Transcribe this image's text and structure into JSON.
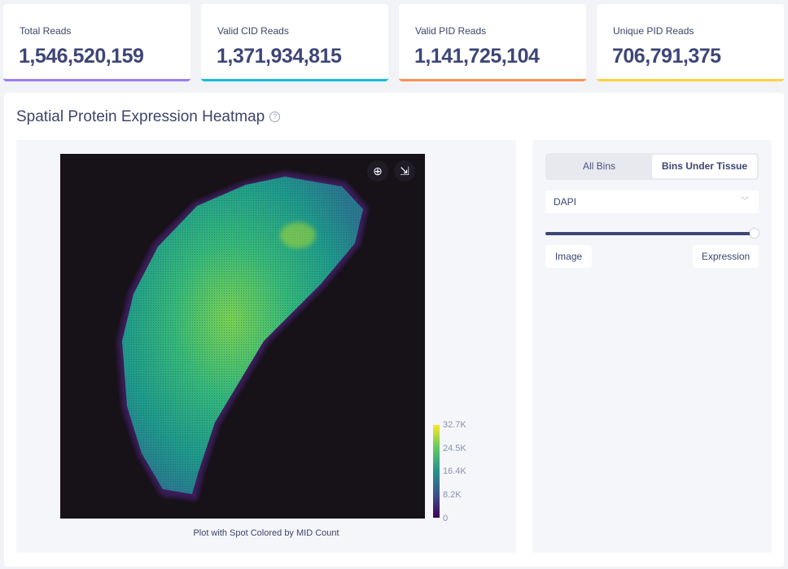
{
  "stats": [
    {
      "label": "Total Reads",
      "value": "1,546,520,159",
      "color": "#9b7ef5"
    },
    {
      "label": "Valid CID Reads",
      "value": "1,371,934,815",
      "color": "#13bde0"
    },
    {
      "label": "Valid PID Reads",
      "value": "1,141,725,104",
      "color": "#ff9150"
    },
    {
      "label": "Unique PID Reads",
      "value": "706,791,375",
      "color": "#ffd23c"
    }
  ],
  "heatmap": {
    "title": "Spatial Protein Expression Heatmap",
    "help_icon": "question-circle-icon",
    "tools": [
      "locate-icon",
      "download-image-icon"
    ],
    "caption": "Plot with Spot Colored by MID Count"
  },
  "chart_data": {
    "type": "heatmap",
    "colormap": "viridis",
    "range": [
      0,
      32700
    ],
    "colorbar_ticks": [
      "32.7K",
      "24.5K",
      "16.4K",
      "8.2K",
      "0"
    ]
  },
  "controls": {
    "tabs": [
      "All Bins",
      "Bins Under Tissue"
    ],
    "active_tab": "Bins Under Tissue",
    "dropdown_value": "DAPI",
    "slider_value": 100,
    "slider_left_label": "Image",
    "slider_right_label": "Expression"
  }
}
